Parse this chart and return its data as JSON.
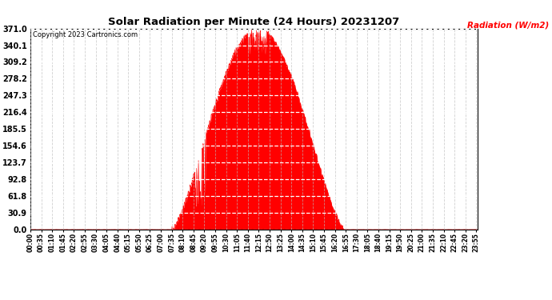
{
  "title": "Solar Radiation per Minute (24 Hours) 20231207",
  "copyright_text": "Copyright 2023 Cartronics.com",
  "ylabel": "Radiation (W/m2)",
  "ylabel_color": "#ff0000",
  "background_color": "#ffffff",
  "fill_color": "#ff0000",
  "line_color": "#ff0000",
  "grid_color_x": "#bbbbbb",
  "grid_color_y": "#ffffff",
  "yticks": [
    0.0,
    30.9,
    61.8,
    92.8,
    123.7,
    154.6,
    185.5,
    216.4,
    247.3,
    278.2,
    309.2,
    340.1,
    371.0
  ],
  "ymax": 371.0,
  "ymin": 0.0,
  "total_minutes": 1440,
  "sunrise_minute": 455,
  "sunset_minute": 1010,
  "peak_minute": 740,
  "peak_value": 371.0,
  "xtick_interval": 35,
  "dashed_line_color": "#ff0000"
}
